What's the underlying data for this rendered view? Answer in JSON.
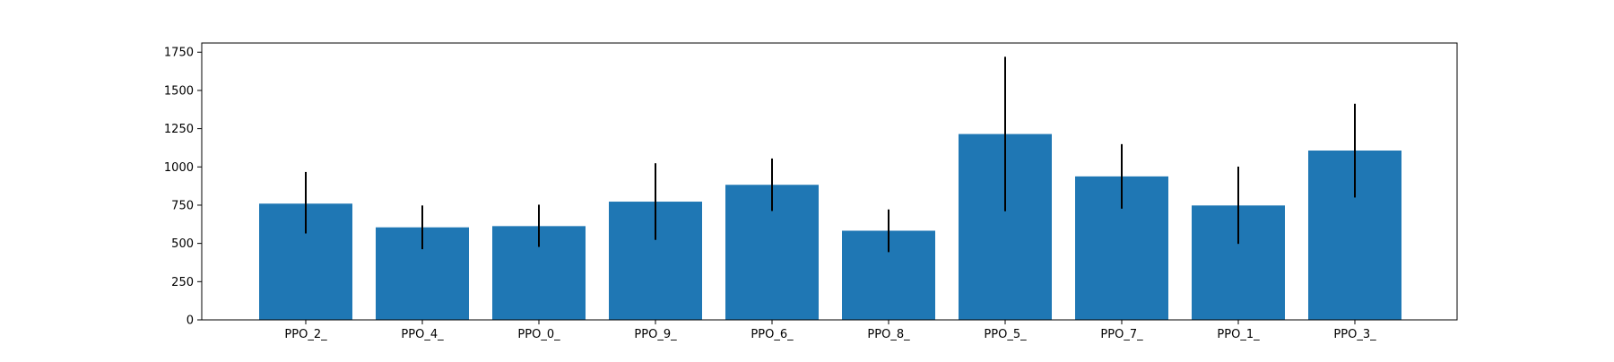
{
  "chart_data": {
    "type": "bar",
    "title": "",
    "xlabel": "",
    "ylabel": "",
    "categories": [
      "PPO_2_",
      "PPO_4_",
      "PPO_0_",
      "PPO_9_",
      "PPO_6_",
      "PPO_8_",
      "PPO_5_",
      "PPO_7_",
      "PPO_1_",
      "PPO_3_"
    ],
    "values": [
      760,
      605,
      613,
      773,
      883,
      583,
      1215,
      938,
      748,
      1107
    ],
    "error_low": [
      565,
      462,
      477,
      523,
      712,
      443,
      710,
      727,
      497,
      800
    ],
    "error_high": [
      967,
      748,
      753,
      1024,
      1055,
      722,
      1720,
      1149,
      1002,
      1413
    ],
    "ylim": [
      0,
      1810
    ],
    "yticks": [
      0,
      250,
      500,
      750,
      1000,
      1250,
      1500,
      1750
    ],
    "bar_color": "#1f77b4",
    "errorbar_color": "#000000",
    "grid": false,
    "legend": "none"
  }
}
